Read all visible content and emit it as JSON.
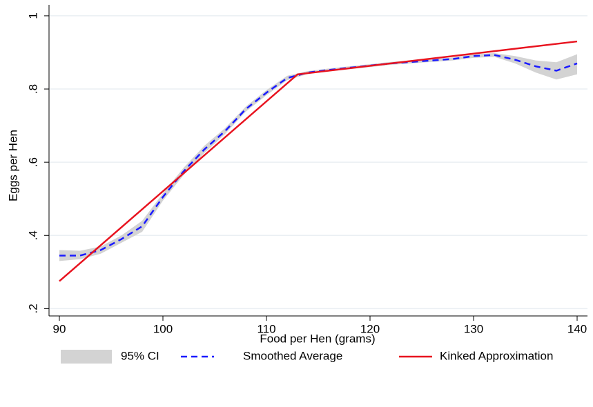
{
  "chart_data": {
    "type": "line",
    "x_label": "Food per Hen (grams)",
    "y_label": "Eggs per Hen",
    "xlim": [
      89,
      141
    ],
    "ylim": [
      0.18,
      1.03
    ],
    "xticks": [
      90,
      100,
      110,
      120,
      130,
      140
    ],
    "yticks": [
      {
        "value": 0.2,
        "label": ".2"
      },
      {
        "value": 0.4,
        "label": ".4"
      },
      {
        "value": 0.6,
        "label": ".6"
      },
      {
        "value": 0.8,
        "label": ".8"
      },
      1
    ],
    "grid": true,
    "legend": "bottom",
    "series": [
      {
        "name": "95% CI",
        "kind": "band",
        "color": "#d3d3d3",
        "x": [
          90,
          92,
          94,
          96,
          98,
          100,
          102,
          104,
          106,
          108,
          110,
          112,
          114,
          116,
          118,
          120,
          122,
          124,
          126,
          128,
          130,
          132,
          134,
          136,
          138,
          140
        ],
        "lower": [
          0.33,
          0.335,
          0.35,
          0.38,
          0.41,
          0.495,
          0.565,
          0.625,
          0.677,
          0.738,
          0.783,
          0.824,
          0.841,
          0.848,
          0.854,
          0.86,
          0.866,
          0.87,
          0.874,
          0.878,
          0.885,
          0.888,
          0.87,
          0.845,
          0.826,
          0.84
        ],
        "upper": [
          0.36,
          0.358,
          0.37,
          0.4,
          0.44,
          0.515,
          0.585,
          0.645,
          0.693,
          0.752,
          0.797,
          0.836,
          0.849,
          0.856,
          0.862,
          0.868,
          0.874,
          0.878,
          0.882,
          0.886,
          0.895,
          0.898,
          0.89,
          0.878,
          0.873,
          0.895
        ]
      },
      {
        "name": "Smoothed Average",
        "kind": "dashed",
        "color": "#1a1aff",
        "x": [
          90,
          92,
          94,
          96,
          98,
          100,
          102,
          104,
          106,
          108,
          110,
          112,
          114,
          116,
          118,
          120,
          122,
          124,
          126,
          128,
          130,
          132,
          134,
          136,
          138,
          140
        ],
        "values": [
          0.345,
          0.345,
          0.36,
          0.39,
          0.425,
          0.505,
          0.575,
          0.635,
          0.685,
          0.745,
          0.79,
          0.83,
          0.845,
          0.852,
          0.858,
          0.864,
          0.87,
          0.874,
          0.878,
          0.882,
          0.89,
          0.893,
          0.88,
          0.862,
          0.85,
          0.87
        ]
      },
      {
        "name": "Kinked Approximation",
        "kind": "solid",
        "color": "#e8131f",
        "x": [
          90,
          113,
          140
        ],
        "values": [
          0.275,
          0.84,
          0.93
        ]
      }
    ]
  }
}
